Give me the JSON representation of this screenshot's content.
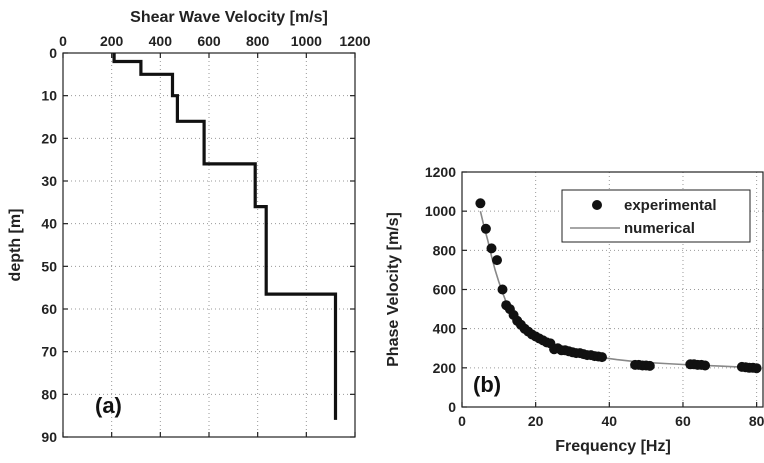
{
  "chart_data": [
    {
      "panel": "(a)",
      "type": "line",
      "xlabel": "Shear Wave Velocity [m/s]",
      "ylabel": "depth [m]",
      "xlim": [
        0,
        1200
      ],
      "ylim": [
        0,
        90
      ],
      "y_inverted": true,
      "x_axis_position": "top",
      "grid": true,
      "x_ticks": [
        0,
        200,
        400,
        600,
        800,
        1000,
        1200
      ],
      "y_ticks": [
        0,
        10,
        20,
        30,
        40,
        50,
        60,
        70,
        80,
        90
      ],
      "series": [
        {
          "style": "step",
          "color": "#111111",
          "points": [
            [
              210,
              0
            ],
            [
              210,
              2
            ],
            [
              320,
              2
            ],
            [
              320,
              5
            ],
            [
              450,
              5
            ],
            [
              450,
              10
            ],
            [
              470,
              10
            ],
            [
              470,
              16
            ],
            [
              580,
              16
            ],
            [
              580,
              26
            ],
            [
              790,
              26
            ],
            [
              790,
              36
            ],
            [
              835,
              36
            ],
            [
              835,
              56.5
            ],
            [
              1120,
              56.5
            ],
            [
              1120,
              86
            ]
          ]
        }
      ]
    },
    {
      "panel": "(b)",
      "type": "scatter",
      "xlabel": "Frequency [Hz]",
      "ylabel": "Phase Velocity [m/s]",
      "xlim": [
        0,
        82
      ],
      "ylim": [
        0,
        1200
      ],
      "x_ticks": [
        0,
        20,
        40,
        60,
        80
      ],
      "y_ticks": [
        0,
        200,
        400,
        600,
        800,
        1000,
        1200
      ],
      "grid": true,
      "legend_position": "top-right",
      "series": [
        {
          "name": "experimental",
          "kind": "markers",
          "color": "#111111",
          "x": [
            5,
            6.5,
            8,
            9.5,
            11,
            12,
            13,
            14,
            15,
            16,
            17,
            18,
            19,
            20,
            21,
            22,
            23,
            24,
            25,
            26,
            27,
            28,
            29,
            30,
            31,
            32,
            33,
            34,
            35,
            36,
            37,
            38,
            47,
            48,
            49,
            50,
            51,
            62,
            63,
            64,
            65,
            66,
            76,
            77,
            78,
            79,
            80
          ],
          "y": [
            1040,
            910,
            810,
            750,
            600,
            520,
            500,
            470,
            440,
            420,
            400,
            385,
            370,
            360,
            350,
            340,
            330,
            325,
            295,
            300,
            290,
            290,
            285,
            280,
            275,
            275,
            270,
            265,
            265,
            260,
            258,
            255,
            215,
            215,
            212,
            212,
            210,
            218,
            218,
            215,
            215,
            212,
            205,
            203,
            200,
            200,
            198
          ]
        },
        {
          "name": "numerical",
          "kind": "line",
          "color": "#888888",
          "x": [
            5,
            6,
            7,
            8,
            9,
            10,
            11,
            12,
            13,
            14,
            15,
            16,
            17,
            18,
            19,
            20,
            22,
            24,
            26,
            28,
            30,
            32,
            35,
            38,
            42,
            46,
            50,
            55,
            60,
            65,
            70,
            75,
            80
          ],
          "y": [
            1000,
            920,
            850,
            770,
            700,
            640,
            585,
            535,
            495,
            460,
            430,
            405,
            385,
            370,
            355,
            345,
            325,
            310,
            297,
            287,
            278,
            270,
            260,
            252,
            242,
            234,
            228,
            222,
            217,
            213,
            209,
            205,
            202
          ]
        }
      ]
    }
  ]
}
